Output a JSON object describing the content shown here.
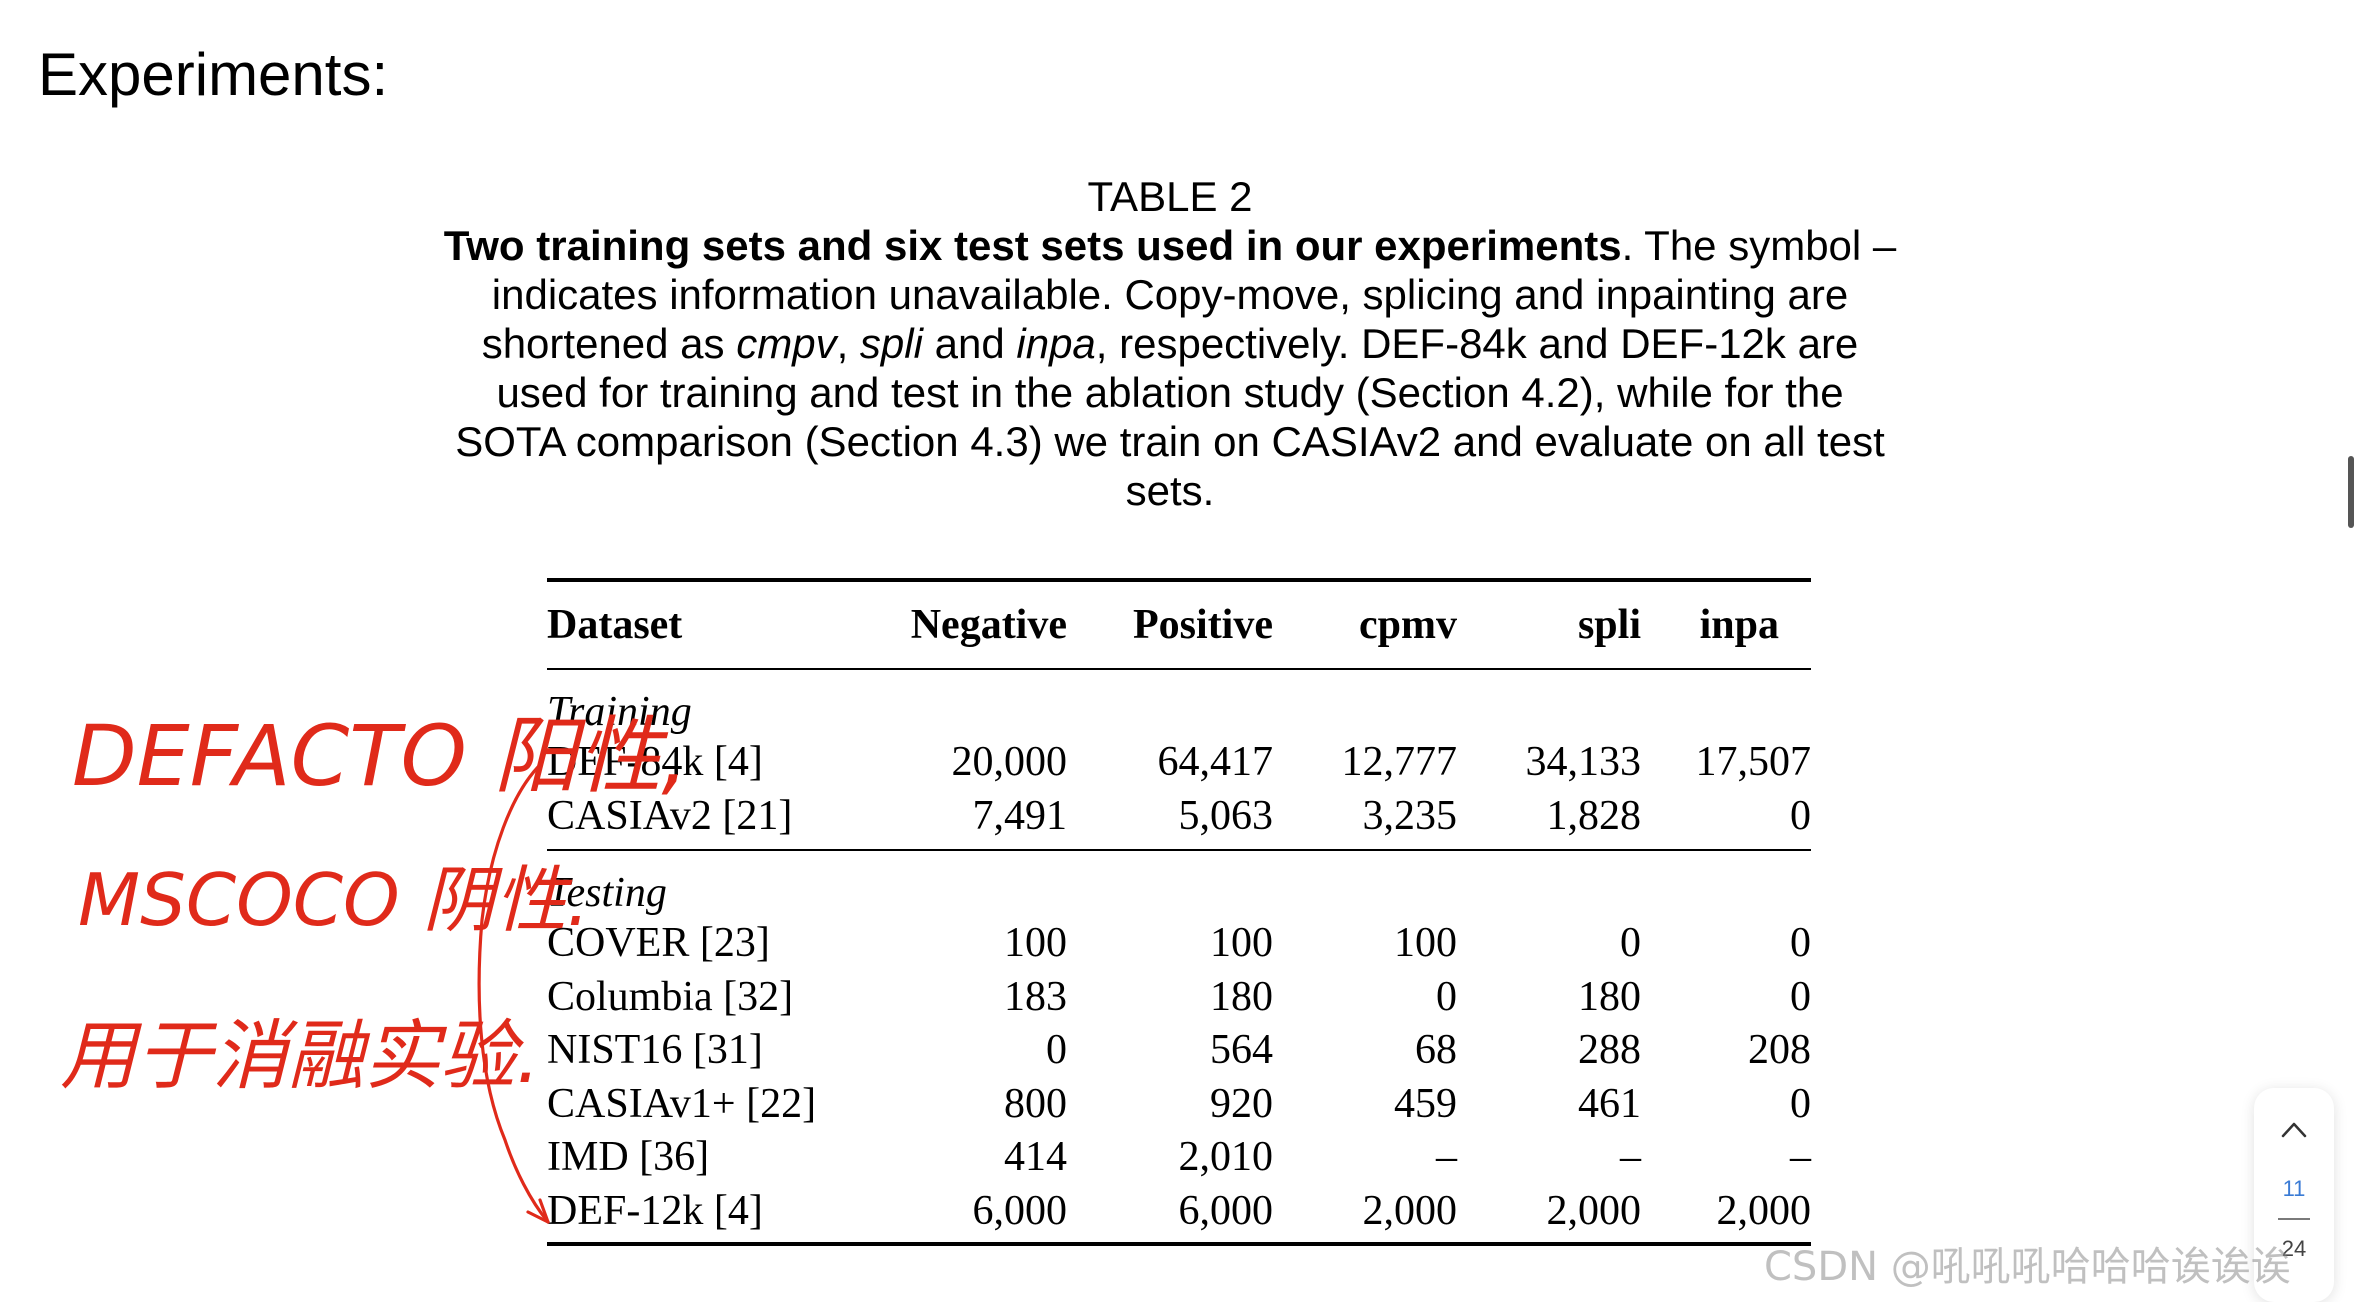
{
  "page": {
    "heading": "Experiments:"
  },
  "caption": {
    "label": "TABLE 2",
    "bold": "Two training sets and six test sets used in our experiments",
    "t1": ". The symbol – indicates information unavailable. Copy-move, splicing and inpainting are shortened as ",
    "i_cmpv": "cmpv",
    "t2": ", ",
    "i_spli": "spli",
    "t3": " and ",
    "i_inpa": "inpa",
    "t4": ", respectively. DEF-84k and DEF-12k are used for training and test in the ablation study (Section 4.2), while for the SOTA comparison (Section 4.3) we train on CASIAv2 and evaluate on all test sets."
  },
  "table": {
    "headers": [
      "Dataset",
      "Negative",
      "Positive",
      "cpmv",
      "spli",
      "inpa"
    ],
    "groups": [
      {
        "name": "Training",
        "rows": [
          [
            "DEF-84k [4]",
            "20,000",
            "64,417",
            "12,777",
            "34,133",
            "17,507"
          ],
          [
            "CASIAv2 [21]",
            "7,491",
            "5,063",
            "3,235",
            "1,828",
            "0"
          ]
        ]
      },
      {
        "name": "Testing",
        "rows": [
          [
            "COVER [23]",
            "100",
            "100",
            "100",
            "0",
            "0"
          ],
          [
            "Columbia [32]",
            "183",
            "180",
            "0",
            "180",
            "0"
          ],
          [
            "NIST16 [31]",
            "0",
            "564",
            "68",
            "288",
            "208"
          ],
          [
            "CASIAv1+ [22]",
            "800",
            "920",
            "459",
            "461",
            "0"
          ],
          [
            "IMD [36]",
            "414",
            "2,010",
            "–",
            "–",
            "–"
          ],
          [
            "DEF-12k [4]",
            "6,000",
            "6,000",
            "2,000",
            "2,000",
            "2,000"
          ]
        ]
      }
    ]
  },
  "annotation": {
    "color": "#e02a1a",
    "lines": [
      "DEFACTO 阳性,",
      "MSCOCO 阴性.",
      "用于消融实验."
    ]
  },
  "pager": {
    "current": "11",
    "total": "24"
  },
  "watermark": "CSDN @吼吼吼哈哈哈诶诶诶",
  "icons": {
    "pager_up": "chevron-up-icon"
  }
}
